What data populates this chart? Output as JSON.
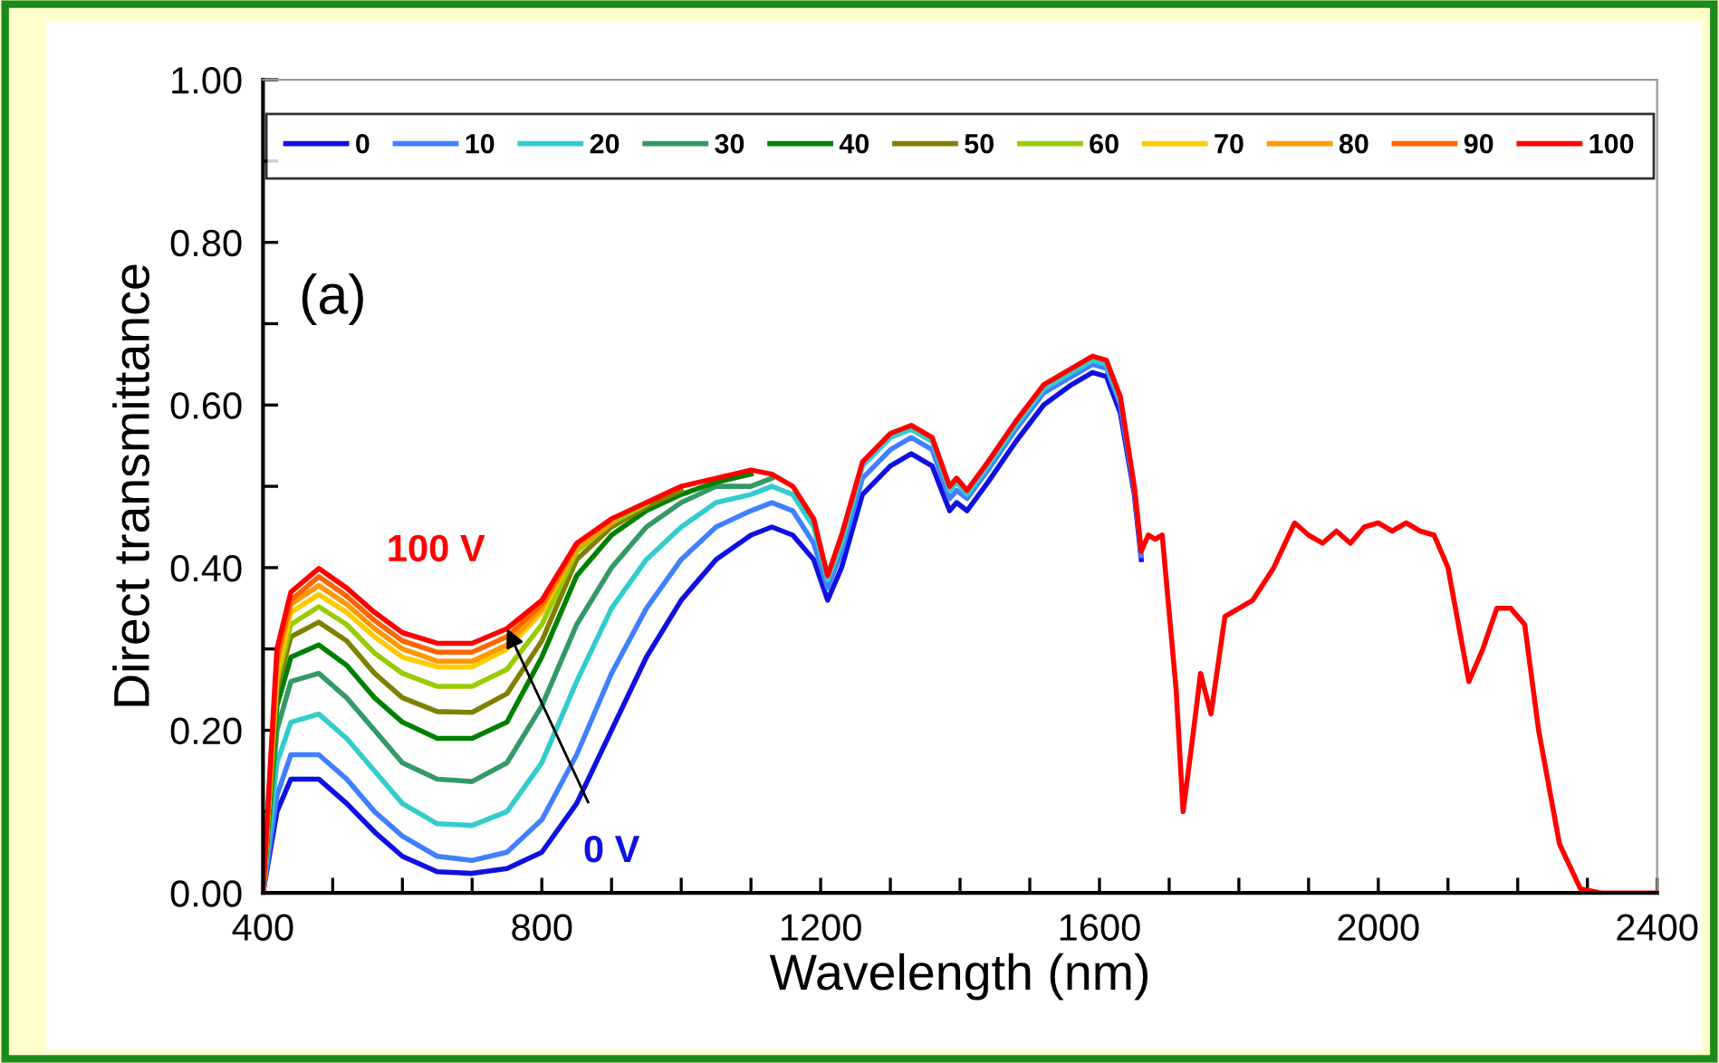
{
  "chart_data": {
    "type": "line",
    "xlabel": "Wavelength (nm)",
    "ylabel": "Direct transmittance",
    "x": [
      400,
      420,
      440,
      480,
      520,
      560,
      600,
      650,
      700,
      750,
      800,
      850,
      900,
      950,
      1000,
      1050,
      1100,
      1130,
      1160,
      1190,
      1210,
      1230,
      1260,
      1300,
      1330,
      1360,
      1385,
      1395,
      1410,
      1440,
      1480,
      1520,
      1560,
      1590,
      1610,
      1630,
      1650,
      1660,
      1670,
      1680,
      1690,
      1710,
      1720,
      1735,
      1745,
      1760,
      1780,
      1800,
      1820,
      1850,
      1880,
      1900,
      1920,
      1940,
      1960,
      1980,
      2000,
      2020,
      2040,
      2060,
      2080,
      2100,
      2130,
      2150,
      2170,
      2190,
      2210,
      2230,
      2260,
      2290,
      2320,
      2360,
      2400
    ],
    "series": [
      {
        "name": "0",
        "color": "#1010e0",
        "values": [
          0,
          0.1,
          0.14,
          0.14,
          0.11,
          0.075,
          0.045,
          0.026,
          0.024,
          0.03,
          0.05,
          0.11,
          0.2,
          0.29,
          0.36,
          0.41,
          0.44,
          0.45,
          0.44,
          0.41,
          0.36,
          0.4,
          0.49,
          0.525,
          0.54,
          0.525,
          0.47,
          0.48,
          0.47,
          0.505,
          0.555,
          0.6,
          0.625,
          0.64,
          0.635,
          0.59,
          0.49,
          0.41,
          null,
          null,
          null,
          null,
          null,
          null,
          null,
          null,
          null,
          null,
          null,
          null,
          null,
          null,
          null,
          null,
          null,
          null,
          null,
          null,
          null,
          null,
          null,
          null,
          null,
          null,
          null,
          null,
          null,
          null,
          null,
          null,
          null,
          null,
          null
        ]
      },
      {
        "name": "10",
        "color": "#4080ff",
        "values": [
          0,
          0.12,
          0.17,
          0.17,
          0.14,
          0.1,
          0.07,
          0.045,
          0.04,
          0.05,
          0.09,
          0.17,
          0.27,
          0.35,
          0.41,
          0.45,
          0.47,
          0.48,
          0.47,
          0.43,
          0.375,
          0.42,
          0.51,
          0.545,
          0.56,
          0.545,
          0.485,
          0.495,
          0.485,
          0.52,
          0.57,
          0.615,
          0.635,
          0.65,
          0.645,
          0.6,
          0.495,
          0.415,
          null,
          null,
          null,
          null,
          null,
          null,
          null,
          null,
          null,
          null,
          null,
          null,
          null,
          null,
          null,
          null,
          null,
          null,
          null,
          null,
          null,
          null,
          null,
          null,
          null,
          null,
          null,
          null,
          null,
          null,
          null,
          null,
          null,
          null,
          null
        ]
      },
      {
        "name": "20",
        "color": "#33cccc",
        "values": [
          0,
          0.16,
          0.21,
          0.22,
          0.19,
          0.15,
          0.11,
          0.085,
          0.083,
          0.1,
          0.16,
          0.26,
          0.35,
          0.41,
          0.45,
          0.48,
          0.49,
          0.5,
          0.49,
          0.45,
          0.385,
          0.43,
          0.525,
          0.56,
          0.57,
          0.555,
          0.495,
          0.505,
          0.49,
          0.525,
          0.575,
          0.62,
          0.64,
          0.655,
          0.65,
          0.605,
          null,
          null,
          null,
          null,
          null,
          null,
          null,
          null,
          null,
          null,
          null,
          null,
          null,
          null,
          null,
          null,
          null,
          null,
          null,
          null,
          null,
          null,
          null,
          null,
          null,
          null,
          null,
          null,
          null,
          null,
          null,
          null,
          null,
          null,
          null,
          null,
          null
        ]
      },
      {
        "name": "30",
        "color": "#339966",
        "values": [
          0,
          0.2,
          0.26,
          0.27,
          0.24,
          0.2,
          0.16,
          0.14,
          0.137,
          0.16,
          0.23,
          0.33,
          0.4,
          0.45,
          0.48,
          0.5,
          0.5,
          0.51,
          null,
          null,
          null,
          null,
          null,
          null,
          null,
          null,
          null,
          null,
          null,
          null,
          null,
          null,
          null,
          null,
          null,
          null,
          null,
          null,
          null,
          null,
          null,
          null,
          null,
          null,
          null,
          null,
          null,
          null,
          null,
          null,
          null,
          null,
          null,
          null,
          null,
          null,
          null,
          null,
          null,
          null,
          null,
          null,
          null,
          null,
          null,
          null,
          null,
          null,
          null,
          null,
          null,
          null,
          null
        ]
      },
      {
        "name": "40",
        "color": "#008000",
        "values": [
          0,
          0.23,
          0.29,
          0.305,
          0.28,
          0.24,
          0.21,
          0.19,
          0.19,
          0.21,
          0.29,
          0.39,
          0.44,
          0.47,
          0.49,
          0.505,
          0.515,
          null,
          null,
          null,
          null,
          null,
          null,
          null,
          null,
          null,
          null,
          null,
          null,
          null,
          null,
          null,
          null,
          null,
          null,
          null,
          null,
          null,
          null,
          null,
          null,
          null,
          null,
          null,
          null,
          null,
          null,
          null,
          null,
          null,
          null,
          null,
          null,
          null,
          null,
          null,
          null,
          null,
          null,
          null,
          null,
          null,
          null,
          null,
          null,
          null,
          null,
          null,
          null,
          null,
          null,
          null,
          null
        ]
      },
      {
        "name": "50",
        "color": "#808000",
        "values": [
          0,
          0.25,
          0.315,
          0.333,
          0.31,
          0.27,
          0.24,
          0.223,
          0.222,
          0.245,
          0.31,
          0.41,
          0.45,
          0.475,
          0.495,
          null,
          null,
          null,
          null,
          null,
          null,
          null,
          null,
          null,
          null,
          null,
          null,
          null,
          null,
          null,
          null,
          null,
          null,
          null,
          null,
          null,
          null,
          null,
          null,
          null,
          null,
          null,
          null,
          null,
          null,
          null,
          null,
          null,
          null,
          null,
          null,
          null,
          null,
          null,
          null,
          null,
          null,
          null,
          null,
          null,
          null,
          null,
          null,
          null,
          null,
          null,
          null,
          null,
          null,
          null,
          null,
          null,
          null
        ]
      },
      {
        "name": "60",
        "color": "#99cc00",
        "values": [
          0,
          0.26,
          0.33,
          0.352,
          0.33,
          0.295,
          0.27,
          0.254,
          0.254,
          0.275,
          0.33,
          0.42,
          0.455,
          0.478,
          null,
          null,
          null,
          null,
          null,
          null,
          null,
          null,
          null,
          null,
          null,
          null,
          null,
          null,
          null,
          null,
          null,
          null,
          null,
          null,
          null,
          null,
          null,
          null,
          null,
          null,
          null,
          null,
          null,
          null,
          null,
          null,
          null,
          null,
          null,
          null,
          null,
          null,
          null,
          null,
          null,
          null,
          null,
          null,
          null,
          null,
          null,
          null,
          null,
          null,
          null,
          null,
          null,
          null,
          null,
          null,
          null,
          null,
          null
        ]
      },
      {
        "name": "70",
        "color": "#ffcc00",
        "values": [
          0,
          0.27,
          0.345,
          0.367,
          0.345,
          0.315,
          0.29,
          0.278,
          0.278,
          0.3,
          0.345,
          0.425,
          0.458,
          null,
          null,
          null,
          null,
          null,
          null,
          null,
          null,
          null,
          null,
          null,
          null,
          null,
          null,
          null,
          null,
          null,
          null,
          null,
          null,
          null,
          null,
          null,
          null,
          null,
          null,
          null,
          null,
          null,
          null,
          null,
          null,
          null,
          null,
          null,
          null,
          null,
          null,
          null,
          null,
          null,
          null,
          null,
          null,
          null,
          null,
          null,
          null,
          null,
          null,
          null,
          null,
          null,
          null,
          null,
          null,
          null,
          null,
          null,
          null
        ]
      },
      {
        "name": "80",
        "color": "#ff9900",
        "values": [
          0,
          0.28,
          0.355,
          0.378,
          0.355,
          0.325,
          0.3,
          0.285,
          0.285,
          0.305,
          0.35,
          0.425,
          0.455,
          null,
          null,
          null,
          null,
          null,
          null,
          null,
          null,
          null,
          null,
          null,
          null,
          null,
          null,
          null,
          null,
          null,
          null,
          null,
          null,
          null,
          null,
          null,
          null,
          null,
          null,
          null,
          null,
          null,
          null,
          null,
          null,
          null,
          null,
          null,
          null,
          null,
          null,
          null,
          null,
          null,
          null,
          null,
          null,
          null,
          null,
          null,
          null,
          null,
          null,
          null,
          null,
          null,
          null,
          null,
          null,
          null,
          null,
          null,
          null
        ]
      },
      {
        "name": "90",
        "color": "#ff6600",
        "values": [
          0,
          0.29,
          0.36,
          0.389,
          0.365,
          0.335,
          0.31,
          0.296,
          0.296,
          0.315,
          0.355,
          0.428,
          null,
          null,
          null,
          null,
          null,
          null,
          null,
          null,
          null,
          null,
          null,
          null,
          null,
          null,
          null,
          null,
          null,
          null,
          null,
          null,
          null,
          null,
          null,
          null,
          null,
          null,
          null,
          null,
          null,
          null,
          null,
          null,
          null,
          null,
          null,
          null,
          null,
          null,
          null,
          null,
          null,
          null,
          null,
          null,
          null,
          null,
          null,
          null,
          null,
          null,
          null,
          null,
          null,
          null,
          null,
          null,
          null,
          null,
          null,
          null,
          null
        ]
      },
      {
        "name": "100",
        "color": "#ff0000",
        "values": [
          0,
          0.3,
          0.37,
          0.399,
          0.375,
          0.345,
          0.32,
          0.307,
          0.307,
          0.325,
          0.36,
          0.43,
          0.46,
          0.48,
          0.5,
          0.51,
          0.52,
          0.515,
          0.5,
          0.46,
          0.39,
          0.44,
          0.53,
          0.565,
          0.575,
          0.56,
          0.5,
          0.51,
          0.495,
          0.53,
          0.58,
          0.625,
          0.645,
          0.66,
          0.655,
          0.61,
          0.5,
          0.42,
          0.44,
          0.435,
          0.44,
          0.25,
          0.1,
          0.2,
          0.27,
          0.22,
          0.34,
          0.35,
          0.36,
          0.4,
          0.455,
          0.44,
          0.43,
          0.445,
          0.43,
          0.45,
          0.455,
          0.445,
          0.455,
          0.445,
          0.44,
          0.4,
          0.26,
          0.3,
          0.35,
          0.35,
          0.33,
          0.2,
          0.06,
          0.005,
          0,
          0,
          0
        ]
      }
    ],
    "xlim": [
      400,
      2400
    ],
    "xticks": [
      400,
      {
        "value": 500,
        "label": null
      },
      {
        "value": 600,
        "label": null
      },
      {
        "value": 700,
        "label": null
      },
      800,
      {
        "value": 900,
        "label": null
      },
      {
        "value": 1000,
        "label": null
      },
      {
        "value": 1100,
        "label": null
      },
      1200,
      {
        "value": 1300,
        "label": null
      },
      {
        "value": 1400,
        "label": null
      },
      {
        "value": 1500,
        "label": null
      },
      1600,
      {
        "value": 1700,
        "label": null
      },
      {
        "value": 1800,
        "label": null
      },
      {
        "value": 1900,
        "label": null
      },
      2000,
      {
        "value": 2100,
        "label": null
      },
      {
        "value": 2200,
        "label": null
      },
      {
        "value": 2300,
        "label": null
      },
      2400
    ],
    "ylim": [
      0,
      1
    ],
    "yticks": [
      {
        "value": 0,
        "label": "0.00"
      },
      {
        "value": 0.1,
        "label": null
      },
      {
        "value": 0.2,
        "label": "0.20"
      },
      {
        "value": 0.3,
        "label": null
      },
      {
        "value": 0.4,
        "label": "0.40"
      },
      {
        "value": 0.5,
        "label": null
      },
      {
        "value": 0.6,
        "label": "0.60"
      },
      {
        "value": 0.7,
        "label": null
      },
      {
        "value": 0.8,
        "label": "0.80"
      },
      {
        "value": 0.9,
        "label": null
      },
      {
        "value": 1.0,
        "label": "1.00"
      }
    ],
    "annotations": [
      "(a)",
      "100 V",
      {
        "text": "0 V",
        "x": 750,
        "y": 0.325
      }
    ],
    "grid": false,
    "legend": "top",
    "marker": "none",
    "line_style": "solid"
  }
}
